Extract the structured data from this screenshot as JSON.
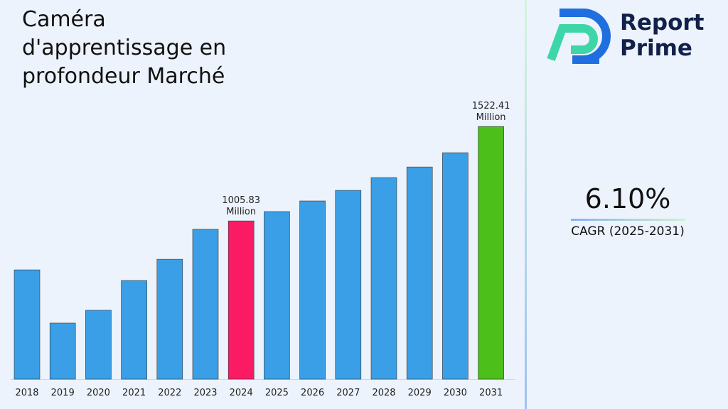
{
  "chart_data": {
    "type": "bar",
    "title": "Caméra d'apprentissage en profondeur Marché",
    "categories": [
      "2018",
      "2019",
      "2020",
      "2021",
      "2022",
      "2023",
      "2024",
      "2025",
      "2026",
      "2027",
      "2028",
      "2029",
      "2030",
      "2031"
    ],
    "values": [
      738,
      447,
      517,
      680,
      796,
      960,
      1005.83,
      1057,
      1115,
      1173,
      1243,
      1301,
      1379,
      1522.41
    ],
    "value_labels": [
      null,
      null,
      null,
      null,
      null,
      null,
      "1005.83 Million",
      null,
      null,
      null,
      null,
      null,
      null,
      "1522.41 Million"
    ],
    "colors": [
      "#3a9fe6",
      "#3a9fe6",
      "#3a9fe6",
      "#3a9fe6",
      "#3a9fe6",
      "#3a9fe6",
      "#fb1b64",
      "#3a9fe6",
      "#3a9fe6",
      "#3a9fe6",
      "#3a9fe6",
      "#3a9fe6",
      "#3a9fe6",
      "#4cbf1b"
    ],
    "ylim": [
      140,
      1826
    ]
  },
  "cagr": {
    "value": "6.10%",
    "label": "CAGR (2025-2031)"
  },
  "logo": {
    "line1": "Report",
    "line2": "Prime"
  }
}
